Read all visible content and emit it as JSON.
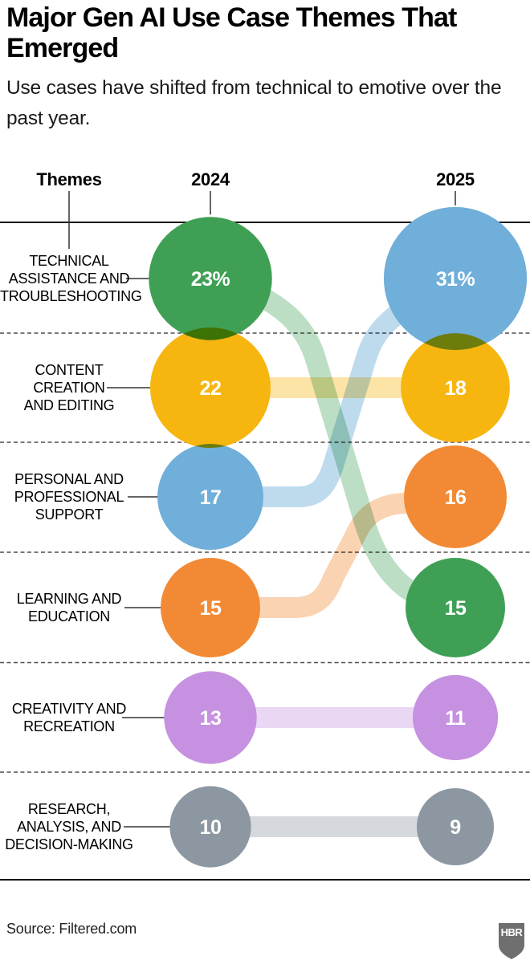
{
  "title": "Major Gen AI Use Case Themes That Emerged",
  "subtitle": "Use cases have shifted from technical to emotive over the past year.",
  "source": "Source: Filtered.com",
  "logo": "HBR",
  "columns": {
    "themes": "Themes",
    "y2024": "2024",
    "y2025": "2025"
  },
  "chart_data": {
    "type": "bubble",
    "subtype": "slope-bubble-comparison",
    "columns": [
      "2024",
      "2025"
    ],
    "value_unit": "percent",
    "rows": [
      {
        "theme": "Technical assistance and troubleshooting",
        "label_lines": [
          "TECHNICAL",
          "ASSISTANCE AND",
          "TROUBLESHOOTING"
        ],
        "values": {
          "2024": 23,
          "2025": 31
        },
        "value_labels": {
          "2024": "23%",
          "2025": "31%"
        },
        "colors": {
          "2024": "#3fa055",
          "2025": "#6fafd9"
        }
      },
      {
        "theme": "Content creation and editing",
        "label_lines": [
          "CONTENT",
          "CREATION",
          "AND EDITING"
        ],
        "values": {
          "2024": 22,
          "2025": 18
        },
        "value_labels": {
          "2024": "22",
          "2025": "18"
        },
        "colors": {
          "2024": "#f7b60f",
          "2025": "#f7b60f"
        }
      },
      {
        "theme": "Personal and professional support",
        "label_lines": [
          "PERSONAL AND",
          "PROFESSIONAL",
          "SUPPORT"
        ],
        "values": {
          "2024": 17,
          "2025": 16
        },
        "value_labels": {
          "2024": "17",
          "2025": "16"
        },
        "colors": {
          "2024": "#6fafd9",
          "2025": "#f28a35"
        }
      },
      {
        "theme": "Learning and education",
        "label_lines": [
          "LEARNING AND",
          "EDUCATION"
        ],
        "values": {
          "2024": 15,
          "2025": 15
        },
        "value_labels": {
          "2024": "15",
          "2025": "15"
        },
        "colors": {
          "2024": "#f28a35",
          "2025": "#3fa055"
        }
      },
      {
        "theme": "Creativity and recreation",
        "label_lines": [
          "CREATIVITY AND",
          "RECREATION"
        ],
        "values": {
          "2024": 13,
          "2025": 11
        },
        "value_labels": {
          "2024": "13",
          "2025": "11"
        },
        "colors": {
          "2024": "#c691e0",
          "2025": "#c691e0"
        }
      },
      {
        "theme": "Research, analysis, and decision-making",
        "label_lines": [
          "RESEARCH,",
          "ANALYSIS, AND",
          "DECISION-MAKING"
        ],
        "values": {
          "2024": 10,
          "2025": 9
        },
        "value_labels": {
          "2024": "10",
          "2025": "9"
        },
        "colors": {
          "2024": "#8c97a1",
          "2025": "#8c97a1"
        }
      }
    ],
    "flows": [
      {
        "name": "green-flow",
        "color": "#3fa055",
        "from_row": 0,
        "to_row": 3
      },
      {
        "name": "yellow-flow",
        "color": "#f7b60f",
        "from_row": 1,
        "to_row": 1
      },
      {
        "name": "blue-flow",
        "color": "#6fafd9",
        "from_row": 2,
        "to_row": 0
      },
      {
        "name": "orange-flow",
        "color": "#f28a35",
        "from_row": 3,
        "to_row": 2
      },
      {
        "name": "purple-flow",
        "color": "#c691e0",
        "from_row": 4,
        "to_row": 4
      },
      {
        "name": "gray-flow",
        "color": "#8c97a1",
        "from_row": 5,
        "to_row": 5
      }
    ],
    "legend_position": "none",
    "grid": "dashed-row-separators"
  }
}
